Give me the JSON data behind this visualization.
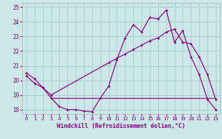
{
  "xlabel": "Windchill (Refroidissement éolien,°C)",
  "bg_color": "#cce8e8",
  "grid_color": "#aacccc",
  "line_color": "#880088",
  "spine_color": "#aaaaaa",
  "xlim": [
    -0.5,
    23.5
  ],
  "ylim": [
    17.7,
    25.3
  ],
  "yticks": [
    18,
    19,
    20,
    21,
    22,
    23,
    24,
    25
  ],
  "xticks": [
    0,
    1,
    2,
    3,
    4,
    5,
    6,
    7,
    8,
    9,
    10,
    11,
    12,
    13,
    14,
    15,
    16,
    17,
    18,
    19,
    20,
    21,
    22,
    23
  ],
  "series1_x": [
    0,
    1,
    2,
    3,
    4,
    5,
    6,
    7,
    8,
    9,
    10,
    11,
    12,
    13,
    14,
    15,
    16,
    17,
    18,
    19,
    20,
    21,
    22,
    23
  ],
  "series1_y": [
    20.5,
    20.1,
    19.5,
    18.8,
    18.2,
    18.0,
    18.0,
    17.9,
    17.85,
    18.8,
    19.6,
    21.4,
    22.9,
    23.8,
    23.3,
    24.3,
    24.2,
    24.8,
    22.6,
    23.4,
    21.6,
    20.4,
    18.7,
    18.0
  ],
  "series2_x": [
    0,
    1,
    2,
    3,
    10,
    11,
    12,
    13,
    14,
    15,
    16,
    17,
    18,
    19,
    20,
    21,
    22,
    23
  ],
  "series2_y": [
    20.3,
    19.8,
    19.5,
    19.0,
    21.2,
    21.5,
    21.8,
    22.1,
    22.4,
    22.7,
    22.9,
    23.3,
    23.5,
    22.6,
    22.5,
    21.6,
    20.4,
    18.7
  ],
  "series3_x": [
    3,
    23
  ],
  "series3_y": [
    18.8,
    18.8
  ]
}
